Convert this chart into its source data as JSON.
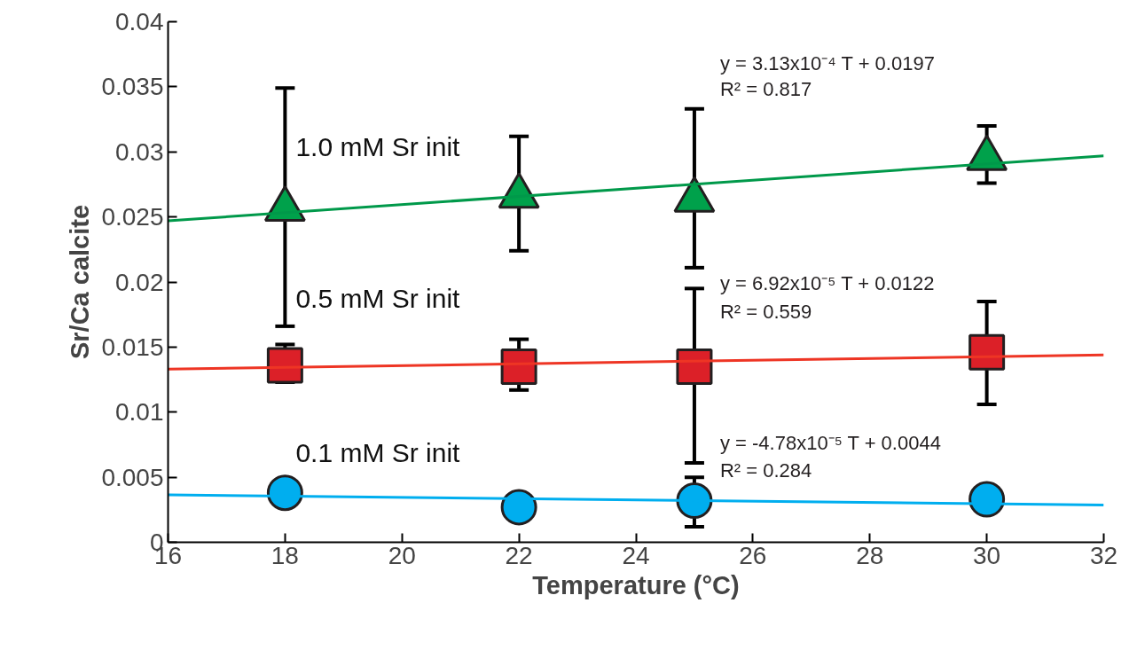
{
  "chart_data": {
    "type": "scatter",
    "xlabel": "Temperature (°C)",
    "ylabel": "Sr/Ca calcite",
    "xlim": [
      16,
      32
    ],
    "xticks": [
      16,
      18,
      20,
      22,
      24,
      26,
      28,
      30,
      32
    ],
    "ylim": [
      0,
      0.04
    ],
    "yticks": [
      0,
      0.005,
      0.01,
      0.015,
      0.02,
      0.025,
      0.03,
      0.035,
      0.04
    ],
    "grid": false,
    "legend": false,
    "series": [
      {
        "name": "1.0 mM Sr init",
        "type": "scatter",
        "marker": "triangle",
        "color": "#00a14b",
        "x": [
          18,
          22,
          25,
          30
        ],
        "values": [
          0.0256,
          0.0266,
          0.0263,
          0.0295
        ],
        "errors": [
          [
            0.0166,
            0.0349
          ],
          [
            0.0224,
            0.0312
          ],
          [
            0.0211,
            0.0333
          ],
          [
            0.0276,
            0.032
          ]
        ]
      },
      {
        "name": "0.5 mM Sr init",
        "type": "scatter",
        "marker": "square",
        "color": "#dc2028",
        "x": [
          18,
          22,
          25,
          30
        ],
        "values": [
          0.0136,
          0.0135,
          0.0135,
          0.0146
        ],
        "errors": [
          [
            0.0123,
            0.0152
          ],
          [
            0.0117,
            0.0156
          ],
          [
            0.0061,
            0.0195
          ],
          [
            0.0106,
            0.0185
          ]
        ]
      },
      {
        "name": "0.1 mM Sr init",
        "type": "scatter",
        "marker": "circle",
        "color": "#00aeef",
        "x": [
          18,
          22,
          25,
          30
        ],
        "values": [
          0.0038,
          0.0027,
          0.0032,
          0.0033
        ],
        "errors": [
          null,
          null,
          [
            0.0012,
            0.005
          ],
          null
        ]
      },
      {
        "type": "line",
        "color": "#00994a",
        "x": [
          16,
          32
        ],
        "values": [
          0.0247,
          0.0297
        ]
      },
      {
        "type": "line",
        "color": "#ee3524",
        "x": [
          16,
          32
        ],
        "values": [
          0.0133,
          0.0144
        ]
      },
      {
        "type": "line",
        "color": "#00aeef",
        "x": [
          16,
          32
        ],
        "values": [
          0.00364,
          0.00287
        ]
      }
    ],
    "annotations": [
      "y = 3.13x10⁻⁴ T + 0.0197",
      "R² = 0.817",
      "y = 6.92x10⁻⁵ T + 0.0122",
      "R² = 0.559",
      "y = -4.78x10⁻⁵ T + 0.0044",
      "R² = 0.284"
    ]
  }
}
